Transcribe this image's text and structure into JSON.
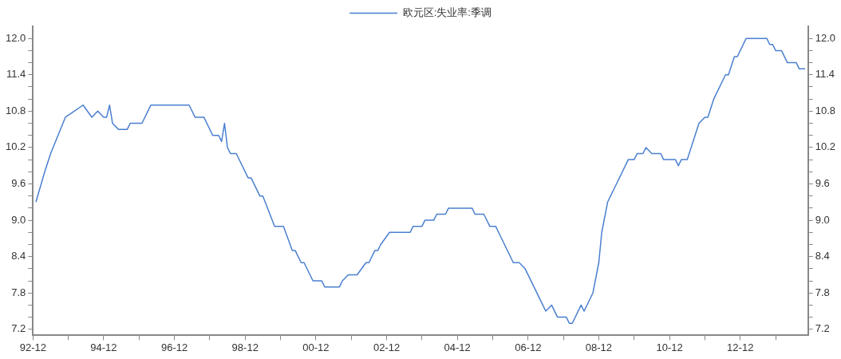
{
  "chart_data": {
    "type": "line",
    "legend": "top",
    "grid": false,
    "marker": "none",
    "line_style": "solid",
    "xlim": [
      "1992-12",
      "2014-11"
    ],
    "xticks": [
      {
        "value": "1992-12",
        "label": "92-12"
      },
      {
        "value": "1993-12",
        "label": null
      },
      {
        "value": "1994-12",
        "label": "94-12"
      },
      {
        "value": "1995-12",
        "label": null
      },
      {
        "value": "1996-12",
        "label": "96-12"
      },
      {
        "value": "1997-12",
        "label": null
      },
      {
        "value": "1998-12",
        "label": "98-12"
      },
      {
        "value": "1999-12",
        "label": null
      },
      {
        "value": "2000-12",
        "label": "00-12"
      },
      {
        "value": "2001-12",
        "label": null
      },
      {
        "value": "2002-12",
        "label": "02-12"
      },
      {
        "value": "2003-12",
        "label": null
      },
      {
        "value": "2004-12",
        "label": "04-12"
      },
      {
        "value": "2005-12",
        "label": null
      },
      {
        "value": "2006-12",
        "label": "06-12"
      },
      {
        "value": "2007-12",
        "label": null
      },
      {
        "value": "2008-12",
        "label": "08-12"
      },
      {
        "value": "2009-12",
        "label": null
      },
      {
        "value": "2010-12",
        "label": "10-12"
      },
      {
        "value": "2011-12",
        "label": null
      },
      {
        "value": "2012-12",
        "label": "12-12"
      },
      {
        "value": "2013-12",
        "label": null
      }
    ],
    "ylim": [
      7.1,
      12.2
    ],
    "yticks": [
      {
        "value": 7.2,
        "label": "7.2"
      },
      {
        "value": 7.4,
        "label": null
      },
      {
        "value": 7.6,
        "label": null
      },
      {
        "value": 7.8,
        "label": "7.8"
      },
      {
        "value": 8,
        "label": null
      },
      {
        "value": 8.2,
        "label": null
      },
      {
        "value": 8.4,
        "label": "8.4"
      },
      {
        "value": 8.6,
        "label": null
      },
      {
        "value": 8.8,
        "label": null
      },
      {
        "value": 9,
        "label": "9.0"
      },
      {
        "value": 9.2,
        "label": null
      },
      {
        "value": 9.4,
        "label": null
      },
      {
        "value": 9.6,
        "label": "9.6"
      },
      {
        "value": 9.8,
        "label": null
      },
      {
        "value": 10,
        "label": null
      },
      {
        "value": 10.2,
        "label": "10.2"
      },
      {
        "value": 10.4,
        "label": null
      },
      {
        "value": 10.6,
        "label": null
      },
      {
        "value": 10.8,
        "label": "10.8"
      },
      {
        "value": 11,
        "label": null
      },
      {
        "value": 11.2,
        "label": null
      },
      {
        "value": 11.4,
        "label": "11.4"
      },
      {
        "value": 11.6,
        "label": null
      },
      {
        "value": 11.8,
        "label": null
      },
      {
        "value": 12,
        "label": "12.0"
      }
    ],
    "y2lim": [
      7.1,
      12.2
    ],
    "y2ticks": [
      {
        "value": 7.2,
        "label": "7.2"
      },
      {
        "value": 7.4,
        "label": null
      },
      {
        "value": 7.6,
        "label": null
      },
      {
        "value": 7.8,
        "label": "7.8"
      },
      {
        "value": 8,
        "label": null
      },
      {
        "value": 8.2,
        "label": null
      },
      {
        "value": 8.4,
        "label": "8.4"
      },
      {
        "value": 8.6,
        "label": null
      },
      {
        "value": 8.8,
        "label": null
      },
      {
        "value": 9,
        "label": "9.0"
      },
      {
        "value": 9.2,
        "label": null
      },
      {
        "value": 9.4,
        "label": null
      },
      {
        "value": 9.6,
        "label": "9.6"
      },
      {
        "value": 9.8,
        "label": null
      },
      {
        "value": 10,
        "label": null
      },
      {
        "value": 10.2,
        "label": "10.2"
      },
      {
        "value": 10.4,
        "label": null
      },
      {
        "value": 10.6,
        "label": null
      },
      {
        "value": 10.8,
        "label": "10.8"
      },
      {
        "value": 11,
        "label": null
      },
      {
        "value": 11.2,
        "label": null
      },
      {
        "value": 11.4,
        "label": "11.4"
      },
      {
        "value": 11.6,
        "label": null
      },
      {
        "value": 11.8,
        "label": null
      },
      {
        "value": 12,
        "label": "12.0"
      }
    ],
    "series": [
      {
        "name": "欧元区:失业率:季调",
        "color": "#4a7fd0",
        "x": [
          "1993-01",
          "1993-04",
          "1993-06",
          "1993-11",
          "1994-02",
          "1994-05",
          "1994-08",
          "1994-10",
          "1994-12",
          "1995-01",
          "1995-02",
          "1995-03",
          "1995-05",
          "1995-08",
          "1995-09",
          "1996-01",
          "1996-03",
          "1996-04",
          "1997-05",
          "1997-07",
          "1997-10",
          "1998-01",
          "1998-03",
          "1998-04",
          "1998-05",
          "1998-06",
          "1998-07",
          "1998-09",
          "1999-01",
          "1999-02",
          "1999-05",
          "1999-06",
          "1999-10",
          "2000-01",
          "2000-04",
          "2000-05",
          "2000-07",
          "2000-08",
          "2000-11",
          "2001-02",
          "2001-03",
          "2001-08",
          "2001-09",
          "2001-11",
          "2002-02",
          "2002-05",
          "2002-06",
          "2002-08",
          "2002-09",
          "2002-10",
          "2003-01",
          "2003-08",
          "2003-09",
          "2003-12",
          "2004-01",
          "2004-04",
          "2004-05",
          "2004-08",
          "2004-09",
          "2005-05",
          "2005-06",
          "2005-09",
          "2005-11",
          "2006-01",
          "2006-02",
          "2006-07",
          "2006-09",
          "2006-11",
          "2007-05",
          "2007-06",
          "2007-08",
          "2007-10",
          "2008-01",
          "2008-02",
          "2008-03",
          "2008-06",
          "2008-07",
          "2008-10",
          "2008-12",
          "2009-01",
          "2009-03",
          "2009-06",
          "2009-10",
          "2009-12",
          "2010-01",
          "2010-03",
          "2010-04",
          "2010-06",
          "2010-09",
          "2010-10",
          "2011-02",
          "2011-03",
          "2011-04",
          "2011-06",
          "2011-08",
          "2011-10",
          "2011-12",
          "2012-01",
          "2012-03",
          "2012-07",
          "2012-08",
          "2012-10",
          "2012-11",
          "2013-02",
          "2013-09",
          "2013-10",
          "2013-11",
          "2013-12",
          "2014-02",
          "2014-04",
          "2014-07",
          "2014-08",
          "2014-10"
        ],
        "values": [
          9.3,
          9.8,
          10.1,
          10.7,
          10.8,
          10.9,
          10.7,
          10.8,
          10.7,
          10.7,
          10.9,
          10.6,
          10.5,
          10.5,
          10.6,
          10.6,
          10.8,
          10.9,
          10.9,
          10.7,
          10.7,
          10.4,
          10.4,
          10.3,
          10.6,
          10.2,
          10.1,
          10.1,
          9.7,
          9.7,
          9.4,
          9.4,
          8.9,
          8.9,
          8.5,
          8.5,
          8.3,
          8.3,
          8.0,
          8.0,
          7.9,
          7.9,
          8.0,
          8.1,
          8.1,
          8.3,
          8.3,
          8.5,
          8.5,
          8.6,
          8.8,
          8.8,
          8.9,
          8.9,
          9.0,
          9.0,
          9.1,
          9.1,
          9.2,
          9.2,
          9.1,
          9.1,
          8.9,
          8.9,
          8.8,
          8.3,
          8.3,
          8.2,
          7.6,
          7.5,
          7.6,
          7.4,
          7.4,
          7.3,
          7.3,
          7.6,
          7.5,
          7.8,
          8.3,
          8.8,
          9.3,
          9.6,
          10.0,
          10.0,
          10.1,
          10.1,
          10.2,
          10.1,
          10.1,
          10.0,
          10.0,
          9.9,
          10.0,
          10.0,
          10.3,
          10.6,
          10.7,
          10.7,
          11.0,
          11.4,
          11.4,
          11.7,
          11.7,
          12.0,
          12.0,
          11.9,
          11.9,
          11.8,
          11.8,
          11.6,
          11.6,
          11.5,
          11.5
        ]
      }
    ]
  }
}
